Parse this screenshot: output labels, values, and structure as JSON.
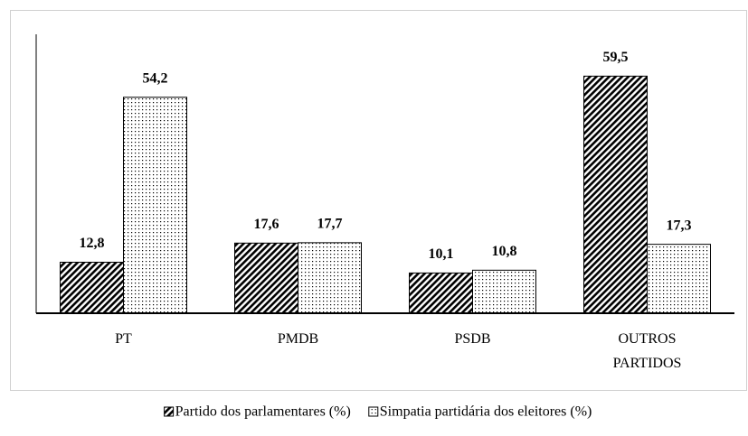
{
  "chart_data": {
    "type": "bar",
    "categories": [
      "PT",
      "PMDB",
      "PSDB",
      "OUTROS PARTIDOS"
    ],
    "series": [
      {
        "name": "Partido dos parlamentares (%)",
        "color": "#000000",
        "pattern": "hatch",
        "values": [
          12.8,
          17.6,
          10.1,
          59.5
        ],
        "value_labels": [
          "12,8",
          "17,6",
          "10,1",
          "59,5"
        ]
      },
      {
        "name": "Simpatia partidária dos eleitores (%)",
        "color": "#000000",
        "pattern": "dots",
        "values": [
          54.2,
          17.7,
          10.8,
          17.3
        ],
        "value_labels": [
          "54,2",
          "17,7",
          "10,8",
          "17,3"
        ]
      }
    ],
    "ylim": [
      0,
      70
    ],
    "legend": "bottom"
  }
}
